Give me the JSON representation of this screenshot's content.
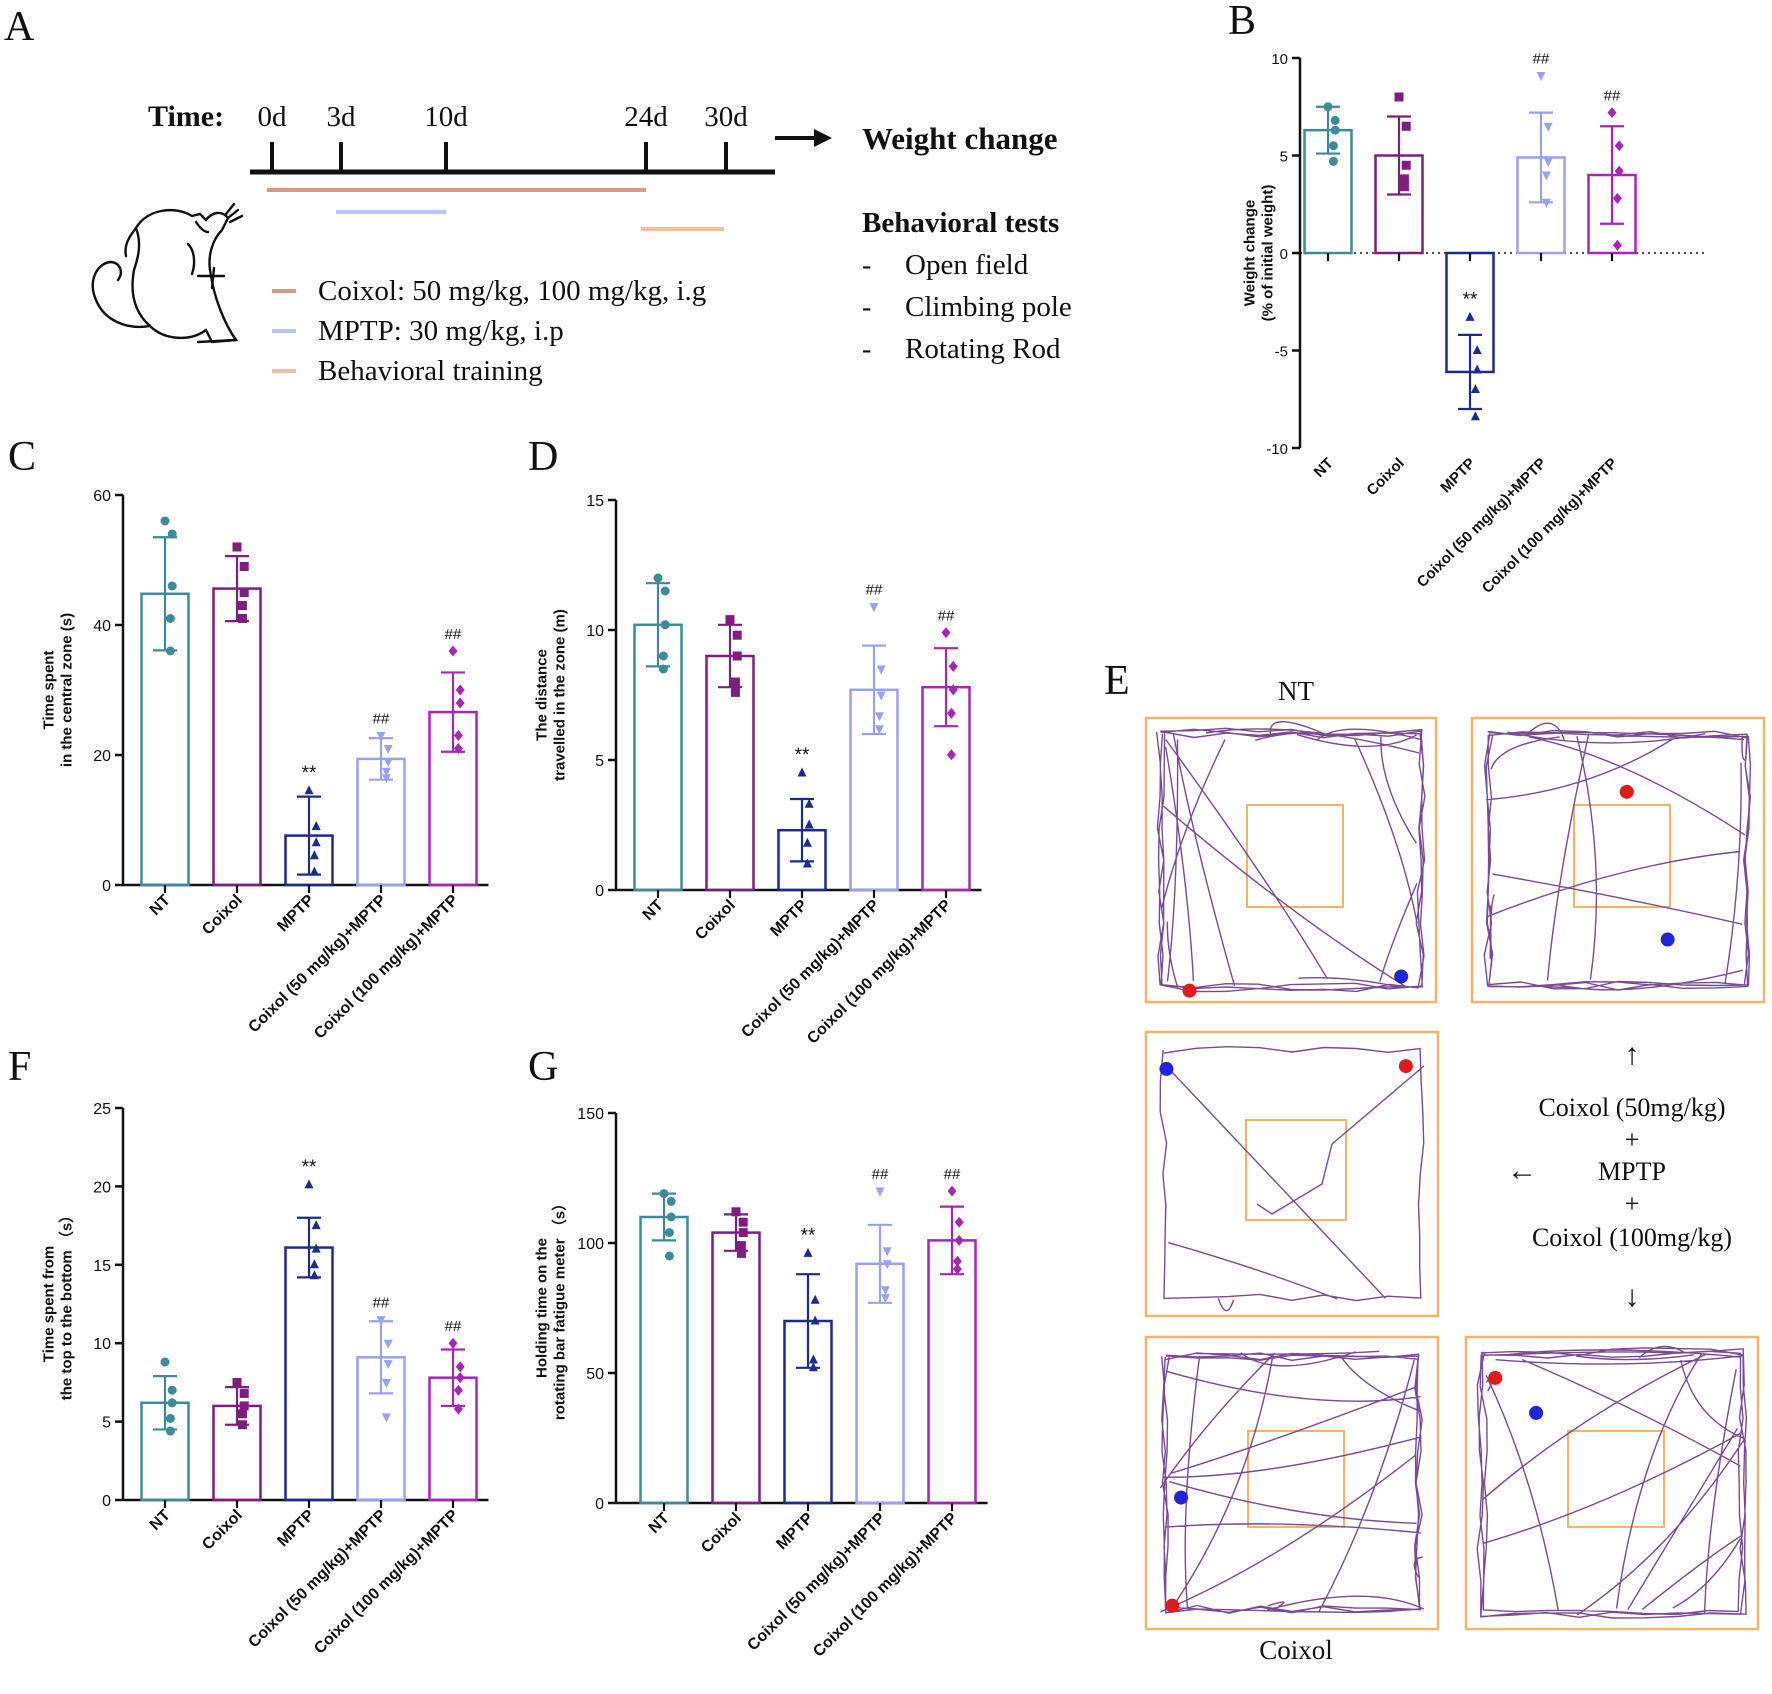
{
  "panels": {
    "A": "A",
    "B": "B",
    "C": "C",
    "D": "D",
    "E": "E",
    "F": "F",
    "G": "G"
  },
  "timeline": {
    "time_label": "Time:",
    "ticks": [
      "0d",
      "3d",
      "10d",
      "24d",
      "30d"
    ],
    "tick_days": [
      0,
      3,
      10,
      24,
      30
    ],
    "arrow_label": "Weight change",
    "behavior_title": "Behavioral tests",
    "behavior_items": [
      "Open field",
      "Climbing pole",
      "Rotating Rod"
    ],
    "bullet": "-",
    "legend": [
      {
        "label": "Coixol: 50 mg/kg, 100 mg/kg, i.g",
        "color": "#d99a82",
        "from_day": 0,
        "to_day": 24
      },
      {
        "label": "MPTP: 30 mg/kg, i.p",
        "color": "#bcc3f2",
        "from_day": 3,
        "to_day": 10
      },
      {
        "label": "Behavioral training",
        "color": "#f1c0a4",
        "from_day": 24,
        "to_day": 30
      }
    ]
  },
  "groups": [
    "NT",
    "Coixol",
    "MPTP",
    "Coixol (50 mg/kg)+MPTP",
    "Coixol (100 mg/kg)+MPTP"
  ],
  "group_colors": [
    "#3e8a98",
    "#7c1f7e",
    "#1e2a8c",
    "#9aa2f0",
    "#a727b5"
  ],
  "group_markers": [
    "circle",
    "square",
    "triangle",
    "triangle-down",
    "diamond"
  ],
  "chart_data": [
    {
      "panel": "B",
      "type": "bar",
      "ylabel": "Weight change\n(% of initial weight)",
      "ylim": [
        -10,
        10
      ],
      "yticks": [
        -10,
        -5,
        0,
        5,
        10
      ],
      "zero_line": "dotted",
      "means": [
        6.3,
        5.0,
        -6.1,
        4.9,
        4.0
      ],
      "sd": [
        1.2,
        2.0,
        1.9,
        2.3,
        2.5
      ],
      "points": [
        [
          7.5,
          6.8,
          6.3,
          5.5,
          4.7
        ],
        [
          8.0,
          6.5,
          4.5,
          3.8,
          3.4
        ],
        [
          -3.3,
          -5.0,
          -6.0,
          -7.0,
          -8.4
        ],
        [
          9.1,
          6.5,
          4.7,
          4.0,
          2.6
        ],
        [
          7.2,
          5.5,
          4.2,
          2.8,
          0.4
        ]
      ],
      "significance": [
        "",
        "",
        "**",
        "##",
        "##"
      ]
    },
    {
      "panel": "C",
      "type": "bar",
      "ylabel": "Time spent\nin the central zone (s)",
      "ylim": [
        0,
        60
      ],
      "yticks": [
        0,
        20,
        40,
        60
      ],
      "means": [
        44.8,
        45.6,
        7.6,
        19.4,
        26.6
      ],
      "sd": [
        8.7,
        5.0,
        6.0,
        3.2,
        6.1
      ],
      "points": [
        [
          56,
          54,
          46,
          41,
          36
        ],
        [
          52,
          49,
          45,
          43,
          41
        ],
        [
          14.5,
          9,
          6.5,
          4.5,
          2
        ],
        [
          23,
          21,
          19,
          17.5,
          16.5
        ],
        [
          36,
          30,
          28,
          23,
          21
        ]
      ],
      "significance": [
        "",
        "",
        "**",
        "##",
        "##"
      ]
    },
    {
      "panel": "D",
      "type": "bar",
      "ylabel": "The distance\ntravelled in the zone (m)",
      "ylim": [
        0,
        15
      ],
      "yticks": [
        0,
        5,
        10,
        15
      ],
      "means": [
        10.2,
        9.0,
        2.3,
        7.7,
        7.8
      ],
      "sd": [
        1.6,
        1.2,
        1.2,
        1.7,
        1.5
      ],
      "points": [
        [
          12.0,
          11.5,
          10.2,
          9.0,
          8.5
        ],
        [
          10.4,
          9.8,
          9.0,
          8.0,
          7.6
        ],
        [
          4.5,
          3.3,
          2.5,
          1.8,
          1.0
        ],
        [
          10.9,
          8.5,
          7.5,
          6.7,
          6.2
        ],
        [
          9.9,
          8.6,
          7.7,
          6.8,
          5.2
        ]
      ],
      "significance": [
        "",
        "",
        "**",
        "##",
        "##"
      ]
    },
    {
      "panel": "F",
      "type": "bar",
      "ylabel": "Time spent from\nthe top to the bottom （s）",
      "ylim": [
        0,
        25
      ],
      "yticks": [
        0,
        5,
        10,
        15,
        20,
        25
      ],
      "means": [
        6.2,
        6.0,
        16.1,
        9.1,
        7.8
      ],
      "sd": [
        1.7,
        1.2,
        1.9,
        2.3,
        1.8
      ],
      "points": [
        [
          8.8,
          7.0,
          6.2,
          5.2,
          4.4
        ],
        [
          7.5,
          6.8,
          6.0,
          5.5,
          4.8
        ],
        [
          20.1,
          17.5,
          16.0,
          15.0,
          14.3
        ],
        [
          11.5,
          10.0,
          8.7,
          7.5,
          5.3
        ],
        [
          10.0,
          8.5,
          7.8,
          7.0,
          5.8
        ]
      ],
      "significance": [
        "",
        "",
        "**",
        "##",
        "##"
      ]
    },
    {
      "panel": "G",
      "type": "bar",
      "ylabel": "Holding time on the\nrotating bar fatigue meter （s）",
      "ylim": [
        0,
        150
      ],
      "yticks": [
        0,
        50,
        100,
        150
      ],
      "means": [
        110,
        104,
        70,
        92,
        101
      ],
      "sd": [
        9,
        7,
        18,
        15,
        13
      ],
      "points": [
        [
          119,
          116,
          110,
          104,
          95
        ],
        [
          112,
          108,
          104,
          99,
          96
        ],
        [
          96,
          78,
          70,
          55,
          52
        ],
        [
          120,
          97,
          92,
          82,
          79
        ],
        [
          120,
          108,
          101,
          93,
          90
        ]
      ],
      "significance": [
        "",
        "",
        "**",
        "##",
        "##"
      ]
    }
  ],
  "panel_e": {
    "title_top": "NT",
    "title_bottom": "Coixol",
    "center_lines": [
      "Coixol (50mg/kg)",
      "+",
      "MPTP",
      "+",
      "Coixol (100mg/kg)"
    ],
    "arrow_up": "↑",
    "arrow_left": "←",
    "arrow_down": "↓",
    "track_color": "#7a4a93",
    "frame_color": "#f0b46c",
    "start_color": "#e01b1b",
    "end_color": "#2323d8"
  }
}
